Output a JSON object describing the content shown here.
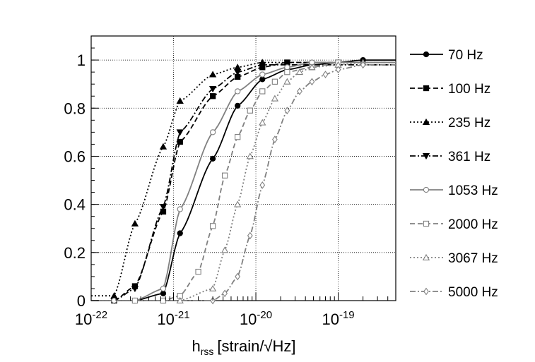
{
  "chart_data": {
    "type": "line",
    "title": "",
    "xlabel": {
      "main": "h",
      "sub": "rss",
      "unit": "[strain/√Hz]"
    },
    "ylabel": "",
    "xscale": "log",
    "xlim": [
      1e-22,
      5e-19
    ],
    "ylim": [
      0,
      1.1
    ],
    "grid": true,
    "legend_position": "right",
    "x_ticks": [
      {
        "value": 1e-22,
        "base": "10",
        "exp": "-22"
      },
      {
        "value": 1e-21,
        "base": "10",
        "exp": "-21"
      },
      {
        "value": 1e-20,
        "base": "10",
        "exp": "-20"
      },
      {
        "value": 1e-19,
        "base": "10",
        "exp": "-19"
      }
    ],
    "y_ticks": [
      {
        "value": 0,
        "label": "0"
      },
      {
        "value": 0.2,
        "label": "0.2"
      },
      {
        "value": 0.4,
        "label": "0.4"
      },
      {
        "value": 0.6,
        "label": "0.6"
      },
      {
        "value": 0.8,
        "label": "0.8"
      },
      {
        "value": 1,
        "label": "1"
      }
    ],
    "series": [
      {
        "name": "70 Hz",
        "color": "#000000",
        "dash": "solid",
        "marker": "circle-filled",
        "x": [
          1.9e-22,
          3.4e-22,
          7.5e-22,
          1.2e-21,
          3e-21,
          6e-21,
          1.2e-20,
          2.4e-20,
          4.8e-20,
          1e-19,
          2e-19
        ],
        "y": [
          0.0,
          0.0,
          0.03,
          0.28,
          0.59,
          0.81,
          0.92,
          0.96,
          0.98,
          0.99,
          1.0
        ]
      },
      {
        "name": "100 Hz",
        "color": "#000000",
        "dash": "dashed",
        "marker": "square-filled",
        "x": [
          1.9e-22,
          3.4e-22,
          7.5e-22,
          1.2e-21,
          3e-21,
          6e-21,
          1.2e-20,
          2.4e-20
        ],
        "y": [
          0.0,
          0.06,
          0.37,
          0.66,
          0.85,
          0.93,
          0.97,
          0.99
        ]
      },
      {
        "name": "235 Hz",
        "color": "#000000",
        "dash": "dotted",
        "marker": "triangle-filled",
        "x": [
          1.9e-22,
          3.4e-22,
          7.5e-22,
          1.2e-21,
          3e-21,
          6e-21,
          1.2e-20
        ],
        "y": [
          0.02,
          0.32,
          0.64,
          0.83,
          0.94,
          0.97,
          0.99
        ]
      },
      {
        "name": "361 Hz",
        "color": "#000000",
        "dash": "dashdot",
        "marker": "triangle-down-filled",
        "x": [
          1.9e-22,
          3.4e-22,
          7.5e-22,
          1.2e-21,
          3e-21,
          6e-21,
          1.2e-20
        ],
        "y": [
          0.0,
          0.05,
          0.39,
          0.7,
          0.88,
          0.95,
          0.98
        ]
      },
      {
        "name": "1053 Hz",
        "color": "#808080",
        "dash": "solid",
        "marker": "circle-open",
        "x": [
          1.9e-22,
          3.4e-22,
          7.5e-22,
          1.2e-21,
          3e-21,
          6e-21,
          1.2e-20,
          2.4e-20,
          4.8e-20
        ],
        "y": [
          0.0,
          0.0,
          0.05,
          0.38,
          0.7,
          0.87,
          0.94,
          0.97,
          0.99
        ]
      },
      {
        "name": "2000 Hz",
        "color": "#808080",
        "dash": "dashed",
        "marker": "square-open",
        "x": [
          3.4e-22,
          7.5e-22,
          1.2e-21,
          2e-21,
          3e-21,
          4.2e-21,
          6e-21,
          8.5e-21,
          1.2e-20,
          1.7e-20,
          2.4e-20,
          4.8e-20,
          1e-19
        ],
        "y": [
          0.0,
          0.0,
          0.02,
          0.12,
          0.31,
          0.52,
          0.68,
          0.79,
          0.87,
          0.91,
          0.95,
          0.97,
          0.99
        ]
      },
      {
        "name": "3067 Hz",
        "color": "#808080",
        "dash": "dotted",
        "marker": "triangle-open",
        "x": [
          1.2e-21,
          3e-21,
          4.2e-21,
          6e-21,
          8.5e-21,
          1.2e-20,
          1.7e-20,
          2.4e-20,
          3.4e-20,
          4.8e-20,
          1e-19,
          2e-19
        ],
        "y": [
          0.0,
          0.05,
          0.21,
          0.4,
          0.6,
          0.74,
          0.84,
          0.91,
          0.95,
          0.97,
          0.98,
          0.99
        ]
      },
      {
        "name": "5000 Hz",
        "color": "#808080",
        "dash": "dashdot",
        "marker": "diamond-open",
        "x": [
          3e-21,
          4.2e-21,
          6e-21,
          8.5e-21,
          1.2e-20,
          1.7e-20,
          2.4e-20,
          3.4e-20,
          4.8e-20,
          7e-20,
          1e-19,
          2e-19
        ],
        "y": [
          0.0,
          0.03,
          0.1,
          0.27,
          0.48,
          0.67,
          0.79,
          0.87,
          0.91,
          0.94,
          0.96,
          0.98
        ]
      }
    ]
  }
}
